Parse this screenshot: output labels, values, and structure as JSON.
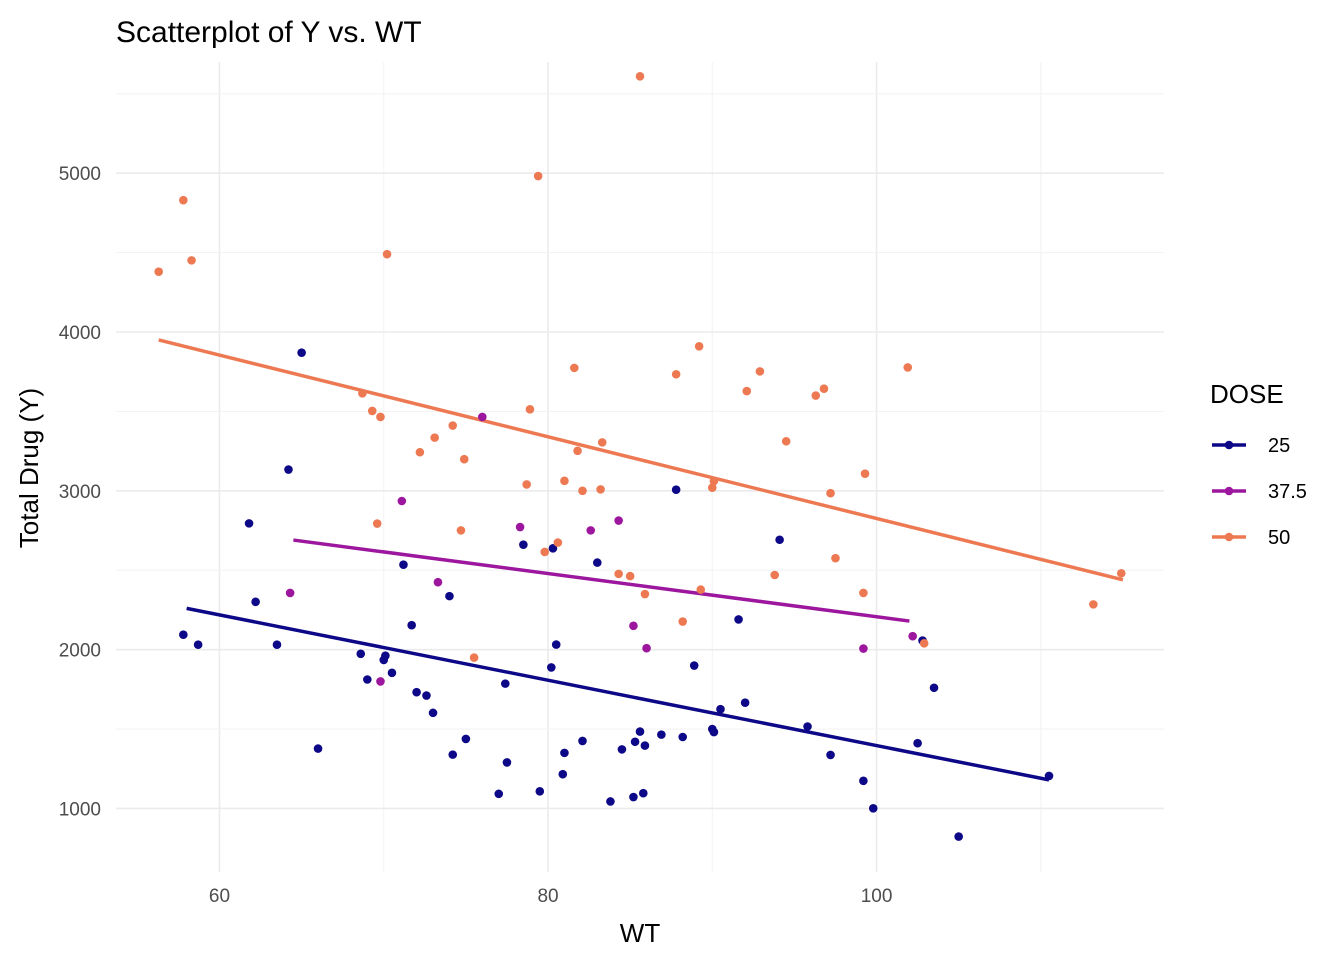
{
  "chart_data": {
    "type": "scatter",
    "title": "Scatterplot of Y vs. WT",
    "xlabel": "WT",
    "ylabel": "Total Drug (Y)",
    "xlim": [
      53.7,
      117.5
    ],
    "ylim": [
      600,
      5700
    ],
    "x_ticks": [
      60,
      80,
      100
    ],
    "y_ticks": [
      1000,
      2000,
      3000,
      4000,
      5000
    ],
    "grid": true,
    "legend": {
      "title": "DOSE",
      "placement": "right"
    },
    "series": [
      {
        "name": "25",
        "color": "#0d0887",
        "points": [
          [
            57.8,
            2094
          ],
          [
            58.7,
            2031
          ],
          [
            61.8,
            2795
          ],
          [
            62.2,
            2301
          ],
          [
            63.5,
            2031
          ],
          [
            64.2,
            3134
          ],
          [
            65.0,
            3870
          ],
          [
            66.0,
            1377
          ],
          [
            68.6,
            1974
          ],
          [
            69.0,
            1812
          ],
          [
            70.0,
            1935
          ],
          [
            70.1,
            1962
          ],
          [
            70.5,
            1854
          ],
          [
            71.2,
            2535
          ],
          [
            71.7,
            2154
          ],
          [
            72.0,
            1732
          ],
          [
            72.6,
            1711
          ],
          [
            73.0,
            1602
          ],
          [
            74.0,
            2337
          ],
          [
            74.2,
            1339
          ],
          [
            75.0,
            1438
          ],
          [
            77.0,
            1092
          ],
          [
            77.4,
            1786
          ],
          [
            77.5,
            1290
          ],
          [
            78.5,
            2661
          ],
          [
            79.5,
            1108
          ],
          [
            80.2,
            1888
          ],
          [
            80.3,
            2638
          ],
          [
            80.5,
            2032
          ],
          [
            80.9,
            1216
          ],
          [
            81.0,
            1350
          ],
          [
            82.1,
            1425
          ],
          [
            83.0,
            2548
          ],
          [
            83.8,
            1044
          ],
          [
            84.5,
            1372
          ],
          [
            85.2,
            1072
          ],
          [
            85.3,
            1420
          ],
          [
            85.6,
            1484
          ],
          [
            85.8,
            1096
          ],
          [
            85.9,
            1396
          ],
          [
            86.9,
            1465
          ],
          [
            87.8,
            3007
          ],
          [
            88.2,
            1450
          ],
          [
            88.9,
            1900
          ],
          [
            90.0,
            1500
          ],
          [
            90.1,
            1481
          ],
          [
            90.5,
            1625
          ],
          [
            91.6,
            2190
          ],
          [
            92.0,
            1666
          ],
          [
            94.1,
            2692
          ],
          [
            95.8,
            1516
          ],
          [
            97.2,
            1337
          ],
          [
            99.2,
            1174
          ],
          [
            99.8,
            1001
          ],
          [
            102.5,
            1411
          ],
          [
            102.8,
            2057
          ],
          [
            103.5,
            1760
          ],
          [
            105.0,
            823
          ],
          [
            110.5,
            1205
          ]
        ],
        "fit": [
          [
            58.0,
            2260
          ],
          [
            110.5,
            1180
          ]
        ]
      },
      {
        "name": "37.5",
        "color": "#9c179e",
        "points": [
          [
            64.3,
            2357
          ],
          [
            69.8,
            1800
          ],
          [
            71.1,
            2936
          ],
          [
            73.3,
            2425
          ],
          [
            76.0,
            3465
          ],
          [
            78.3,
            2772
          ],
          [
            82.6,
            2751
          ],
          [
            84.3,
            2813
          ],
          [
            85.2,
            2150
          ],
          [
            86.0,
            2009
          ],
          [
            99.2,
            2007
          ],
          [
            102.2,
            2085
          ]
        ],
        "fit": [
          [
            64.5,
            2690
          ],
          [
            102.0,
            2180
          ]
        ]
      },
      {
        "name": "50",
        "color": "#ed7953",
        "points": [
          [
            56.3,
            4380
          ],
          [
            57.8,
            4830
          ],
          [
            58.3,
            4451
          ],
          [
            68.7,
            3614
          ],
          [
            69.3,
            3503
          ],
          [
            69.6,
            2794
          ],
          [
            69.8,
            3465
          ],
          [
            70.2,
            4490
          ],
          [
            72.2,
            3243
          ],
          [
            73.1,
            3335
          ],
          [
            74.2,
            3411
          ],
          [
            74.7,
            2751
          ],
          [
            74.9,
            3199
          ],
          [
            75.5,
            1950
          ],
          [
            78.7,
            3040
          ],
          [
            78.9,
            3513
          ],
          [
            79.4,
            4982
          ],
          [
            79.8,
            2615
          ],
          [
            80.6,
            2674
          ],
          [
            81.0,
            3063
          ],
          [
            81.6,
            3774
          ],
          [
            81.8,
            3252
          ],
          [
            82.1,
            3000
          ],
          [
            83.2,
            3009
          ],
          [
            83.3,
            3305
          ],
          [
            84.3,
            2477
          ],
          [
            85.0,
            2463
          ],
          [
            85.6,
            5610
          ],
          [
            85.9,
            2350
          ],
          [
            87.8,
            3734
          ],
          [
            88.2,
            2177
          ],
          [
            89.2,
            3910
          ],
          [
            89.3,
            2378
          ],
          [
            90.0,
            3020
          ],
          [
            90.1,
            3061
          ],
          [
            92.1,
            3628
          ],
          [
            92.9,
            3752
          ],
          [
            93.8,
            2470
          ],
          [
            94.5,
            3312
          ],
          [
            96.3,
            3600
          ],
          [
            96.8,
            3643
          ],
          [
            97.2,
            2985
          ],
          [
            97.5,
            2576
          ],
          [
            99.2,
            2357
          ],
          [
            99.3,
            3108
          ],
          [
            101.9,
            3777
          ],
          [
            102.9,
            2040
          ],
          [
            113.2,
            2285
          ],
          [
            114.9,
            2481
          ]
        ],
        "fit": [
          [
            56.3,
            3950
          ],
          [
            115.0,
            2440
          ]
        ]
      }
    ]
  }
}
